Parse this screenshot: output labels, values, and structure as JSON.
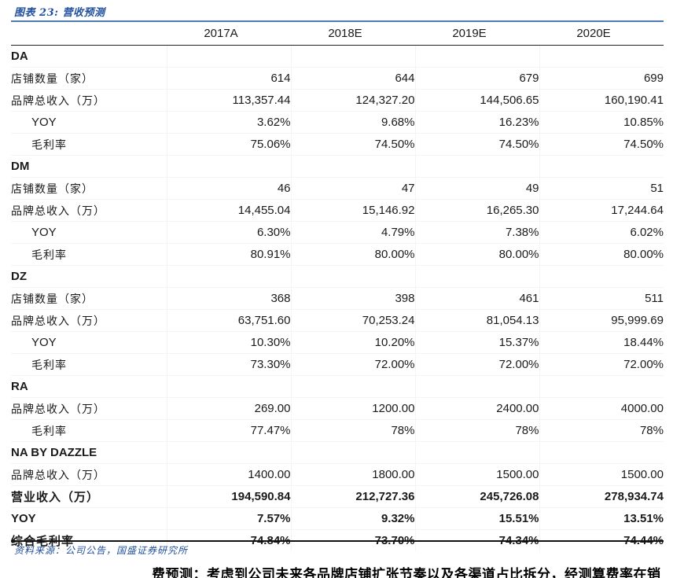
{
  "title": "图表 23:  营收预测",
  "footer": {
    "source": "资料来源：公司公告，国盛证券研究所"
  },
  "clipped_text": "费预测：考虑到公司未来各品牌店铺扩张节奏以及各渠道占比拆分，经测算费率在销",
  "table": {
    "columns": [
      "2017A",
      "2018E",
      "2019E",
      "2020E"
    ],
    "rows": [
      {
        "label": "DA",
        "style": "section",
        "latin": true,
        "values": [
          "",
          "",
          "",
          ""
        ]
      },
      {
        "label": "店铺数量（家）",
        "style": "plain",
        "latin": false,
        "values": [
          "614",
          "644",
          "679",
          "699"
        ]
      },
      {
        "label": "品牌总收入（万）",
        "style": "plain",
        "latin": false,
        "values": [
          "113,357.44",
          "124,327.20",
          "144,506.65",
          "160,190.41"
        ]
      },
      {
        "label": "YOY",
        "style": "indent",
        "latin": true,
        "values": [
          "3.62%",
          "9.68%",
          "16.23%",
          "10.85%"
        ]
      },
      {
        "label": "毛利率",
        "style": "indent",
        "latin": false,
        "values": [
          "75.06%",
          "74.50%",
          "74.50%",
          "74.50%"
        ]
      },
      {
        "label": "DM",
        "style": "section",
        "latin": true,
        "values": [
          "",
          "",
          "",
          ""
        ]
      },
      {
        "label": "店铺数量（家）",
        "style": "plain",
        "latin": false,
        "values": [
          "46",
          "47",
          "49",
          "51"
        ]
      },
      {
        "label": "品牌总收入（万）",
        "style": "plain",
        "latin": false,
        "values": [
          "14,455.04",
          "15,146.92",
          "16,265.30",
          "17,244.64"
        ]
      },
      {
        "label": "YOY",
        "style": "indent",
        "latin": true,
        "values": [
          "6.30%",
          "4.79%",
          "7.38%",
          "6.02%"
        ]
      },
      {
        "label": "毛利率",
        "style": "indent",
        "latin": false,
        "values": [
          "80.91%",
          "80.00%",
          "80.00%",
          "80.00%"
        ]
      },
      {
        "label": "DZ",
        "style": "section",
        "latin": true,
        "values": [
          "",
          "",
          "",
          ""
        ]
      },
      {
        "label": "店铺数量（家）",
        "style": "plain",
        "latin": false,
        "values": [
          "368",
          "398",
          "461",
          "511"
        ]
      },
      {
        "label": "品牌总收入（万）",
        "style": "plain",
        "latin": false,
        "values": [
          "63,751.60",
          "70,253.24",
          "81,054.13",
          "95,999.69"
        ]
      },
      {
        "label": "YOY",
        "style": "indent",
        "latin": true,
        "values": [
          "10.30%",
          "10.20%",
          "15.37%",
          "18.44%"
        ]
      },
      {
        "label": "毛利率",
        "style": "indent",
        "latin": false,
        "values": [
          "73.30%",
          "72.00%",
          "72.00%",
          "72.00%"
        ]
      },
      {
        "label": "RA",
        "style": "section",
        "latin": true,
        "values": [
          "",
          "",
          "",
          ""
        ]
      },
      {
        "label": "品牌总收入（万）",
        "style": "plain",
        "latin": false,
        "values": [
          "269.00",
          "1200.00",
          "2400.00",
          "4000.00"
        ]
      },
      {
        "label": "毛利率",
        "style": "indent",
        "latin": false,
        "values": [
          "77.47%",
          "78%",
          "78%",
          "78%"
        ]
      },
      {
        "label": "NA BY DAZZLE",
        "style": "section",
        "latin": true,
        "values": [
          "",
          "",
          "",
          ""
        ]
      },
      {
        "label": "品牌总收入（万）",
        "style": "plain",
        "latin": false,
        "values": [
          "1400.00",
          "1800.00",
          "1500.00",
          "1500.00"
        ]
      },
      {
        "label": "营业收入（万）",
        "style": "bold",
        "latin": false,
        "values": [
          "194,590.84",
          "212,727.36",
          "245,726.08",
          "278,934.74"
        ]
      },
      {
        "label": "YOY",
        "style": "bold",
        "latin": true,
        "values": [
          "7.57%",
          "9.32%",
          "15.51%",
          "13.51%"
        ]
      },
      {
        "label": "综合毛利率",
        "style": "bold",
        "latin": false,
        "values": [
          "74.84%",
          "73.70%",
          "74.34%",
          "74.44%"
        ]
      }
    ]
  }
}
